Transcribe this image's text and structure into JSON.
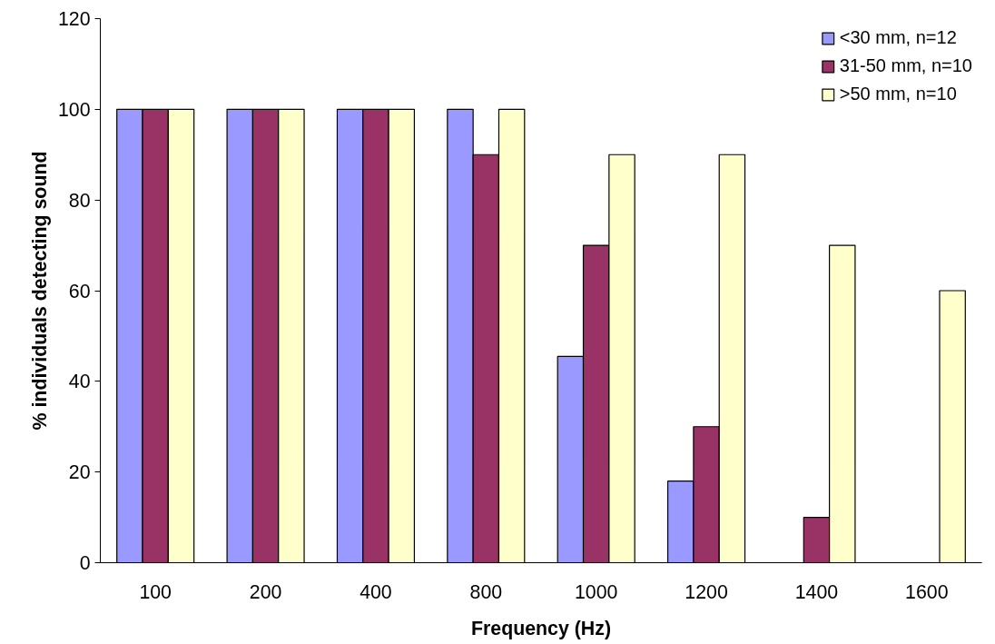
{
  "chart_data": {
    "type": "bar",
    "xlabel": "Frequency (Hz)",
    "ylabel": "% individuals detecting sound",
    "categories": [
      "100",
      "200",
      "400",
      "800",
      "1000",
      "1200",
      "1400",
      "1600"
    ],
    "series": [
      {
        "name": "<30 mm, n=12",
        "color": "#9999ff",
        "values": [
          100,
          100,
          100,
          100,
          45.5,
          18,
          0,
          0
        ]
      },
      {
        "name": "31-50 mm, n=10",
        "color": "#993366",
        "values": [
          100,
          100,
          100,
          90,
          70,
          30,
          10,
          0
        ]
      },
      {
        "name": ">50 mm, n=10",
        "color": "#ffffcc",
        "values": [
          100,
          100,
          100,
          100,
          90,
          90,
          70,
          60
        ]
      }
    ],
    "ylim": [
      0,
      120
    ],
    "yticks": [
      0,
      20,
      40,
      60,
      80,
      100,
      120
    ],
    "grid": false,
    "legend": "top right"
  }
}
